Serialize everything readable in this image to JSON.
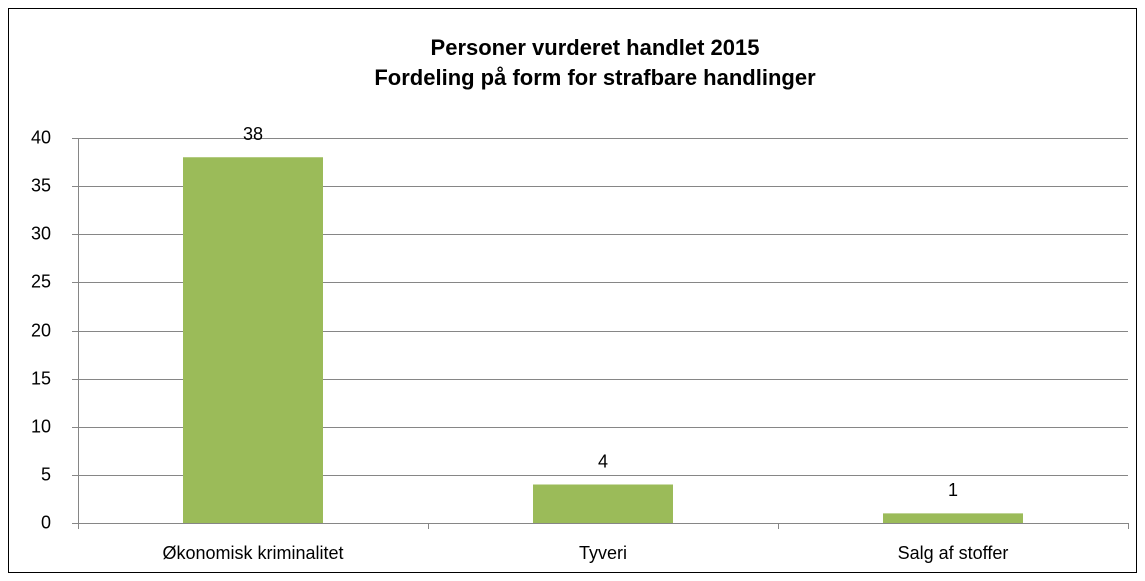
{
  "chart_data": {
    "type": "bar",
    "title": [
      "Personer vurderet handlet 2015",
      "Fordeling på form for strafbare handlinger"
    ],
    "categories": [
      "Økonomisk kriminalitet",
      "Tyveri",
      "Salg af stoffer"
    ],
    "values": [
      38,
      4,
      1
    ],
    "color": "#9bbb59",
    "ylim": [
      0,
      40
    ],
    "yticks": [
      0,
      5,
      10,
      15,
      20,
      25,
      30,
      35,
      40
    ],
    "grid": true,
    "data_labels": true
  }
}
